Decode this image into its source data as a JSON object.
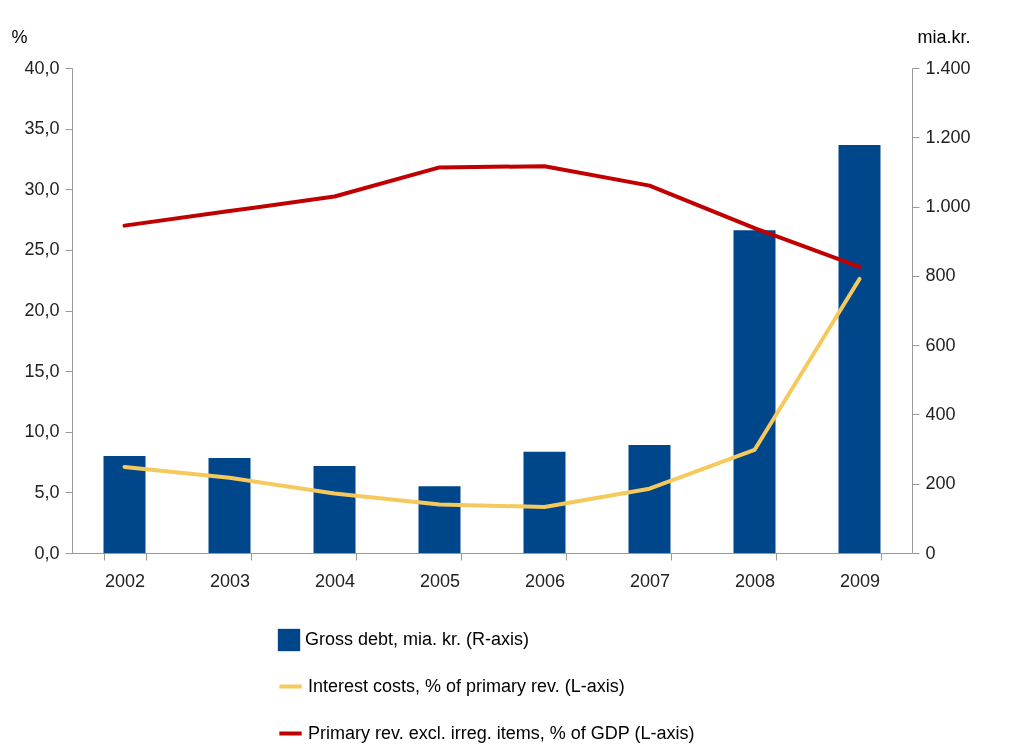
{
  "chart_data": {
    "type": "bar",
    "categories": [
      "2002",
      "2003",
      "2004",
      "2005",
      "2006",
      "2007",
      "2008",
      "2009"
    ],
    "ylabel": "%",
    "y2label": "mia.kr.",
    "ylim": [
      0,
      40
    ],
    "yticks": [
      {
        "value": 0,
        "label": "0,0"
      },
      {
        "value": 5,
        "label": "5,0"
      },
      {
        "value": 10,
        "label": "10,0"
      },
      {
        "value": 15,
        "label": "15,0"
      },
      {
        "value": 20,
        "label": "20,0"
      },
      {
        "value": 25,
        "label": "25,0"
      },
      {
        "value": 30,
        "label": "30,0"
      },
      {
        "value": 35,
        "label": "35,0"
      },
      {
        "value": 40,
        "label": "40,0"
      }
    ],
    "y2lim": [
      0,
      1400
    ],
    "y2ticks": [
      0,
      200,
      400,
      600,
      800,
      {
        "value": 1000,
        "label": "1.000"
      },
      {
        "value": 1200,
        "label": "1.200"
      },
      {
        "value": 1400,
        "label": "1.400"
      }
    ],
    "series": [
      {
        "name": "Gross debt, mia. kr. (R-axis)",
        "axis": "y2",
        "color": "#00468b",
        "values": [
          280,
          274,
          251,
          193,
          292,
          312,
          932,
          1178
        ]
      },
      {
        "name": "Interest costs, % of primary rev. (L-axis)",
        "type": "line",
        "axis": "y",
        "color": "#f5c95c",
        "values": [
          7.1,
          6.2,
          4.9,
          4.0,
          3.8,
          5.3,
          8.5,
          22.6
        ]
      },
      {
        "name": "Primary rev. excl. irreg. items, % of GDP (L-axis)",
        "type": "line",
        "axis": "y",
        "color": "#c00000",
        "values": [
          27.0,
          28.2,
          29.4,
          31.8,
          31.9,
          30.3,
          26.8,
          23.6
        ]
      }
    ],
    "legend": "bottom",
    "grid": false
  }
}
